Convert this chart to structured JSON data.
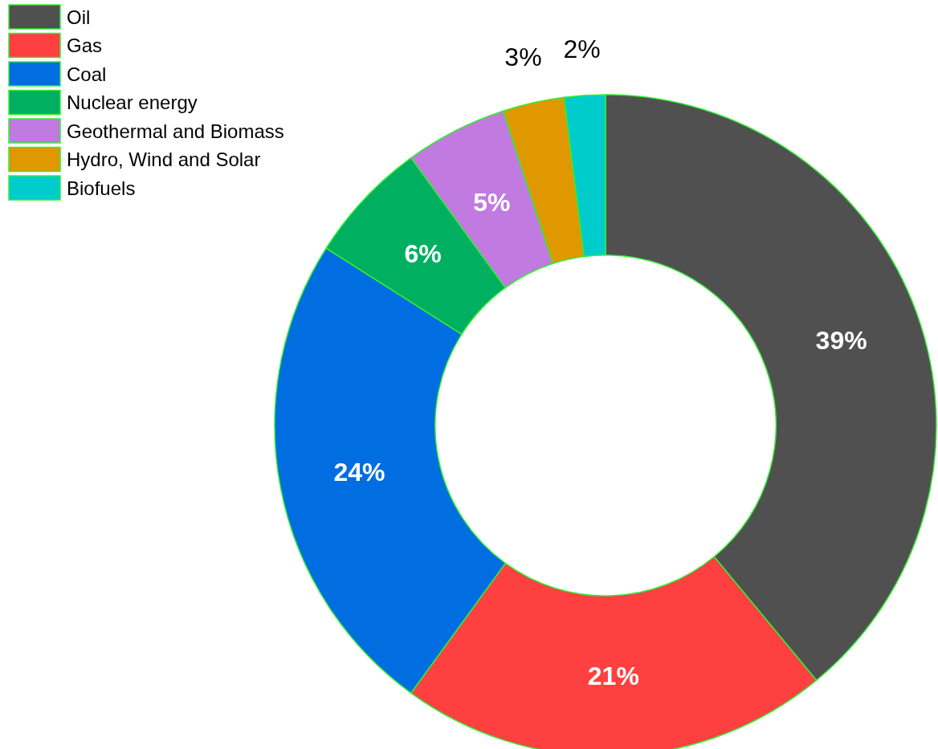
{
  "chart_data": {
    "type": "donut",
    "categories": [
      "Oil",
      "Gas",
      "Coal",
      "Nuclear energy",
      "Geothermal and Biomass",
      "Hydro, Wind and Solar",
      "Biofuels"
    ],
    "values": [
      39,
      21,
      24,
      6,
      5,
      3,
      2
    ],
    "colors": [
      "#505050",
      "#ff4040",
      "#006ee0",
      "#00b060",
      "#c07ae0",
      "#e09800",
      "#00cccc"
    ],
    "value_labels": [
      "39%",
      "21%",
      "24%",
      "6%",
      "5%",
      "3%",
      "2%"
    ],
    "legend": "top left"
  }
}
